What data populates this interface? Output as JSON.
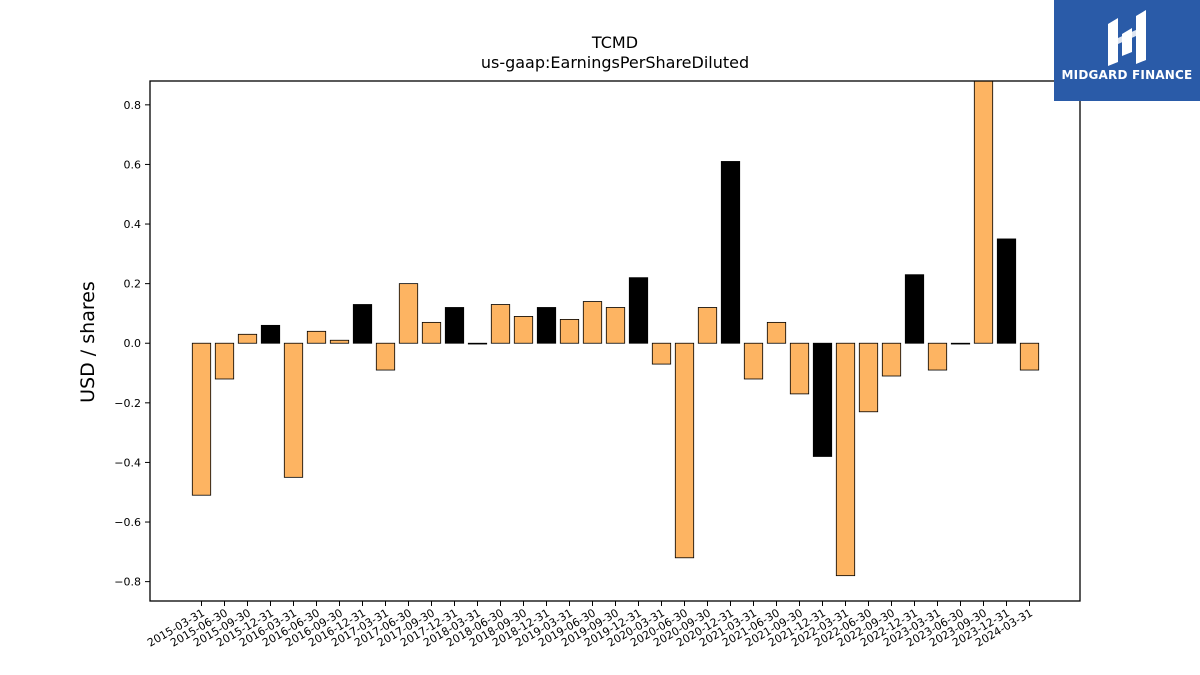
{
  "chart_data": {
    "type": "bar",
    "title": "TCMD",
    "subtitle": "us-gaap:EarningsPerShareDiluted",
    "ylabel": "USD / shares",
    "xlabel": "",
    "ylim": [
      -0.865,
      0.88
    ],
    "yticks": [
      -0.8,
      -0.6,
      -0.4,
      -0.2,
      0.0,
      0.2,
      0.4,
      0.6,
      0.8
    ],
    "grid": false,
    "colors": {
      "quarter": "#fdb462",
      "year_end": "#000000",
      "edge": "#000000"
    },
    "categories": [
      "2015-03-31",
      "2015-06-30",
      "2015-09-30",
      "2015-12-31",
      "2016-03-31",
      "2016-06-30",
      "2016-09-30",
      "2016-12-31",
      "2017-03-31",
      "2017-06-30",
      "2017-09-30",
      "2017-12-31",
      "2018-03-31",
      "2018-06-30",
      "2018-09-30",
      "2018-12-31",
      "2019-03-31",
      "2019-06-30",
      "2019-09-30",
      "2019-12-31",
      "2020-03-31",
      "2020-06-30",
      "2020-09-30",
      "2020-12-31",
      "2021-03-31",
      "2021-06-30",
      "2021-09-30",
      "2021-12-31",
      "2022-03-31",
      "2022-06-30",
      "2022-09-30",
      "2022-12-31",
      "2023-03-31",
      "2023-06-30",
      "2023-09-30",
      "2023-12-31",
      "2024-03-31"
    ],
    "values": [
      -0.51,
      -0.12,
      0.03,
      0.06,
      -0.45,
      0.04,
      0.01,
      0.13,
      -0.09,
      0.2,
      0.07,
      0.12,
      0.0,
      0.13,
      0.09,
      0.12,
      0.08,
      0.14,
      0.12,
      0.22,
      -0.07,
      -0.72,
      0.12,
      0.61,
      -0.12,
      0.07,
      -0.17,
      -0.38,
      -0.78,
      -0.23,
      -0.11,
      0.23,
      -0.09,
      0.0,
      0.88,
      0.35,
      -0.09
    ]
  },
  "logo": {
    "text": "MIDGARD FINANCE"
  }
}
